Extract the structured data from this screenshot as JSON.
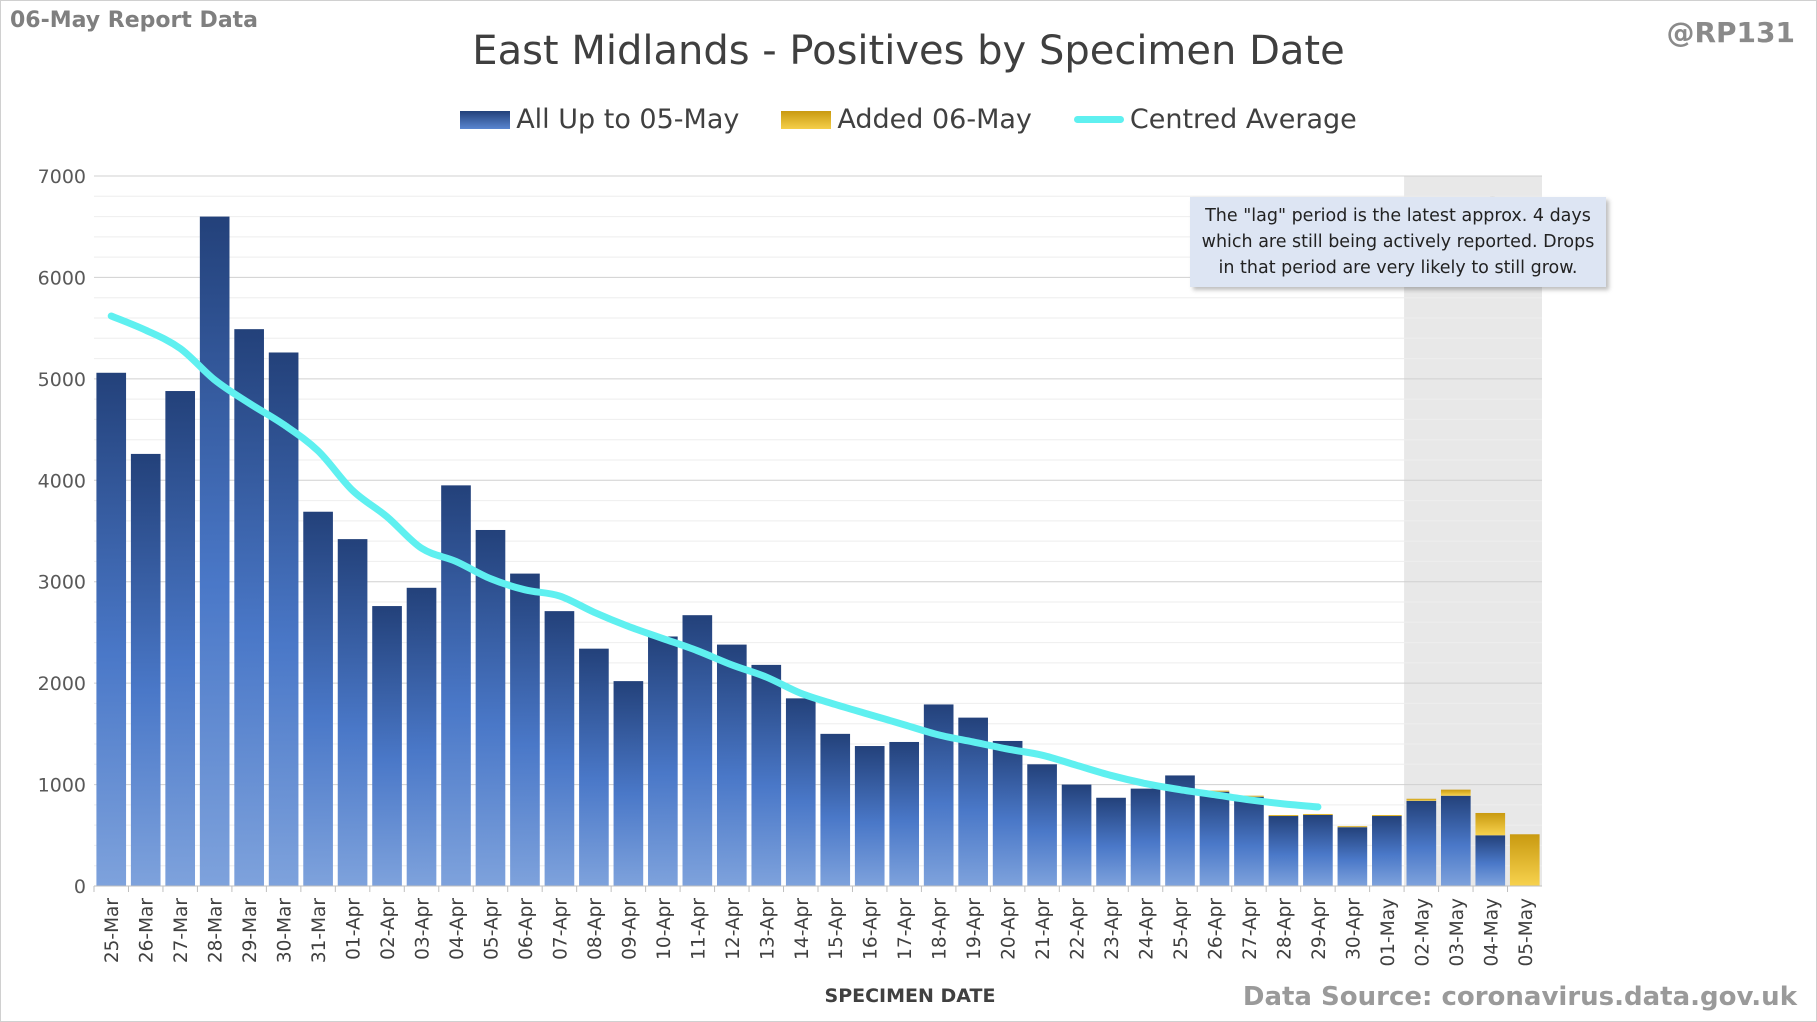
{
  "report_label": "06-May Report Data",
  "handle": "@RP131",
  "source": "Data Source: coronavirus.data.gov.uk",
  "lag_note": "The \"lag\" period is the latest approx. 4 days which are still being actively reported.  Drops in that period are very likely to still grow.",
  "colors": {
    "bar_top": "#23417a",
    "bar_mid": "#4a78c8",
    "bar_bottom": "#7ea2dc",
    "added": "#f0c22c",
    "average_line": "#5ff0f0",
    "lag_band": "#e8e8e8",
    "lag_text": "#9a9a9a",
    "grid": "#d9d9d9"
  },
  "chart_data": {
    "type": "bar",
    "title": "East Midlands - Positives by Specimen Date",
    "xlabel": "SPECIMEN DATE",
    "ylabel": "",
    "ylim": [
      0,
      7000
    ],
    "yticks": [
      0,
      1000,
      2000,
      3000,
      4000,
      5000,
      6000,
      7000
    ],
    "grid": true,
    "legend_position": "top",
    "stacked": true,
    "categories": [
      "25-Mar",
      "26-Mar",
      "27-Mar",
      "28-Mar",
      "29-Mar",
      "30-Mar",
      "31-Mar",
      "01-Apr",
      "02-Apr",
      "03-Apr",
      "04-Apr",
      "05-Apr",
      "06-Apr",
      "07-Apr",
      "08-Apr",
      "09-Apr",
      "10-Apr",
      "11-Apr",
      "12-Apr",
      "13-Apr",
      "14-Apr",
      "15-Apr",
      "16-Apr",
      "17-Apr",
      "18-Apr",
      "19-Apr",
      "20-Apr",
      "21-Apr",
      "22-Apr",
      "23-Apr",
      "24-Apr",
      "25-Apr",
      "26-Apr",
      "27-Apr",
      "28-Apr",
      "29-Apr",
      "30-Apr",
      "01-May",
      "02-May",
      "03-May",
      "04-May",
      "05-May"
    ],
    "series": [
      {
        "name": "All Up to 05-May",
        "values": [
          5060,
          4260,
          4880,
          6600,
          5490,
          5260,
          3690,
          3420,
          2760,
          2940,
          3950,
          3510,
          3080,
          2710,
          2340,
          2020,
          2460,
          2670,
          2380,
          2180,
          1850,
          1500,
          1380,
          1420,
          1790,
          1660,
          1430,
          1200,
          1000,
          870,
          960,
          1090,
          930,
          880,
          690,
          700,
          580,
          690,
          840,
          890,
          500,
          0
        ]
      },
      {
        "name": "Added 06-May",
        "values": [
          0,
          0,
          0,
          0,
          0,
          0,
          0,
          0,
          0,
          0,
          0,
          0,
          0,
          0,
          0,
          0,
          0,
          0,
          0,
          0,
          0,
          0,
          0,
          0,
          0,
          0,
          0,
          0,
          0,
          0,
          0,
          0,
          10,
          10,
          10,
          10,
          10,
          10,
          20,
          60,
          220,
          510
        ]
      },
      {
        "name": "Centred Average",
        "type": "line",
        "values": [
          5620,
          5480,
          5300,
          4990,
          4760,
          4550,
          4290,
          3900,
          3640,
          3330,
          3200,
          3030,
          2920,
          2860,
          2700,
          2560,
          2440,
          2320,
          2180,
          2060,
          1900,
          1790,
          1690,
          1590,
          1490,
          1420,
          1350,
          1290,
          1190,
          1090,
          1010,
          950,
          900,
          850,
          810,
          780,
          null,
          null,
          null,
          null,
          null,
          null
        ]
      }
    ],
    "annotations": [
      {
        "text": "LAG",
        "from": "02-May",
        "to": "05-May"
      }
    ]
  }
}
